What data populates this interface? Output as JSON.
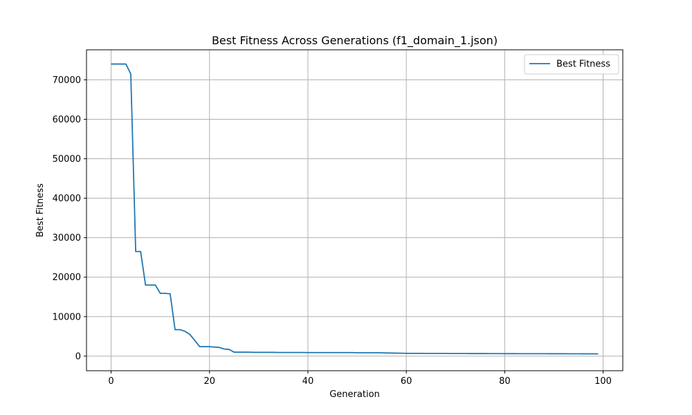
{
  "chart_data": {
    "type": "line",
    "title": "Best Fitness Across Generations (f1_domain_1.json)",
    "xlabel": "Generation",
    "ylabel": "Best Fitness",
    "xlim": [
      -5,
      104
    ],
    "ylim": [
      -3700,
      77600
    ],
    "x_ticks": [
      0,
      20,
      40,
      60,
      80,
      100
    ],
    "y_ticks": [
      0,
      10000,
      20000,
      30000,
      40000,
      50000,
      60000,
      70000
    ],
    "grid": true,
    "legend_position": "top-right",
    "series": [
      {
        "name": "Best Fitness",
        "color": "#1f77b4",
        "x": [
          0,
          1,
          2,
          3,
          4,
          5,
          6,
          7,
          8,
          9,
          10,
          11,
          12,
          13,
          14,
          15,
          16,
          17,
          18,
          19,
          20,
          21,
          22,
          23,
          24,
          25,
          26,
          27,
          28,
          29,
          30,
          31,
          32,
          33,
          34,
          35,
          36,
          37,
          38,
          39,
          40,
          41,
          42,
          43,
          44,
          45,
          46,
          47,
          48,
          49,
          50,
          51,
          52,
          53,
          54,
          55,
          56,
          57,
          58,
          59,
          60,
          61,
          62,
          63,
          64,
          65,
          66,
          67,
          68,
          69,
          70,
          71,
          72,
          73,
          74,
          75,
          76,
          77,
          78,
          79,
          80,
          81,
          82,
          83,
          84,
          85,
          86,
          87,
          88,
          89,
          90,
          91,
          92,
          93,
          94,
          95,
          96,
          97,
          98,
          99
        ],
        "y": [
          74000,
          74000,
          74000,
          74000,
          71500,
          26500,
          26500,
          18000,
          18000,
          18000,
          15900,
          15900,
          15800,
          6700,
          6700,
          6300,
          5500,
          4000,
          2400,
          2400,
          2400,
          2300,
          2200,
          1800,
          1700,
          1000,
          1000,
          1000,
          1000,
          950,
          950,
          950,
          950,
          950,
          920,
          920,
          920,
          920,
          920,
          920,
          900,
          900,
          900,
          900,
          900,
          900,
          900,
          900,
          900,
          900,
          850,
          850,
          850,
          850,
          850,
          830,
          800,
          780,
          760,
          740,
          700,
          700,
          700,
          700,
          680,
          680,
          680,
          680,
          680,
          660,
          660,
          660,
          660,
          650,
          650,
          650,
          650,
          640,
          640,
          640,
          630,
          630,
          630,
          620,
          620,
          620,
          610,
          610,
          610,
          600,
          600,
          600,
          600,
          590,
          590,
          590,
          580,
          580,
          580,
          570
        ]
      }
    ]
  }
}
